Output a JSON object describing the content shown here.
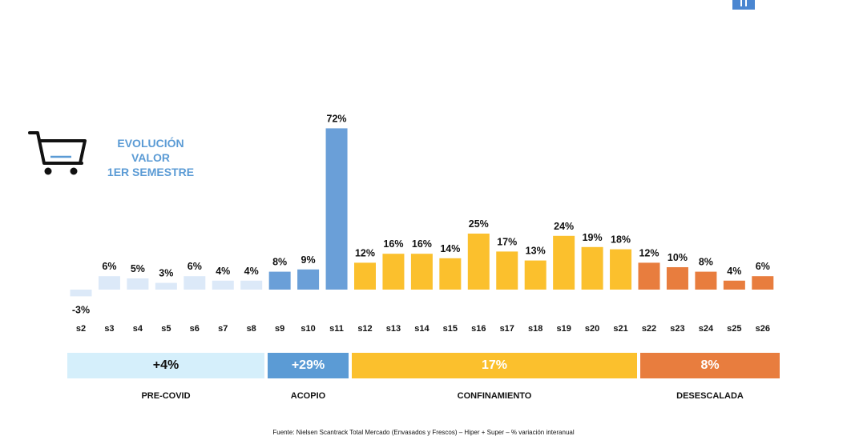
{
  "title_lines": [
    "EVOLUCIÓN",
    "VALOR",
    "1ER SEMESTRE"
  ],
  "chart_data": {
    "type": "bar",
    "title": "EVOLUCIÓN VALOR 1ER SEMESTRE",
    "categories": [
      "s2",
      "s3",
      "s4",
      "s5",
      "s6",
      "s7",
      "s8",
      "s9",
      "s10",
      "s11",
      "s12",
      "s13",
      "s14",
      "s15",
      "s16",
      "s17",
      "s18",
      "s19",
      "s20",
      "s21",
      "s22",
      "s23",
      "s24",
      "s25",
      "s26"
    ],
    "values": [
      -3,
      6,
      5,
      3,
      6,
      4,
      4,
      8,
      9,
      72,
      12,
      16,
      16,
      14,
      25,
      17,
      13,
      24,
      19,
      18,
      12,
      10,
      8,
      4,
      6
    ],
    "labels": [
      "-3%",
      "6%",
      "5%",
      "3%",
      "6%",
      "4%",
      "4%",
      "8%",
      "9%",
      "72%",
      "12%",
      "16%",
      "16%",
      "14%",
      "25%",
      "17%",
      "13%",
      "24%",
      "19%",
      "18%",
      "12%",
      "10%",
      "8%",
      "4%",
      "6%"
    ],
    "unit": "%",
    "phases": [
      {
        "name": "PRE-COVID",
        "value_label": "+4%",
        "color": "#d5effb",
        "text_color": "#111111",
        "weeks": [
          "s2",
          "s3",
          "s4",
          "s5",
          "s6",
          "s7",
          "s8"
        ]
      },
      {
        "name": "ACOPIO",
        "value_label": "+29%",
        "color": "#5b9bd5",
        "text_color": "#ffffff",
        "weeks": [
          "s9",
          "s10",
          "s11"
        ]
      },
      {
        "name": "CONFINAMIENTO",
        "value_label": "17%",
        "color": "#fbc02d",
        "text_color": "#ffffff",
        "weeks": [
          "s12",
          "s13",
          "s14",
          "s15",
          "s16",
          "s17",
          "s18",
          "s19",
          "s20",
          "s21"
        ]
      },
      {
        "name": "DESESCALADA",
        "value_label": "8%",
        "color": "#e87d3e",
        "text_color": "#ffffff",
        "weeks": [
          "s22",
          "s23",
          "s24",
          "s25",
          "s26"
        ]
      }
    ],
    "bar_colors": {
      "PRE-COVID": "#dce9f8",
      "ACOPIO": "#6a9fd8",
      "CONFINAMIENTO": "#fbc02d",
      "DESESCALADA": "#e87d3e"
    }
  },
  "source": "Fuente: Nielsen Scantrack Total Mercado (Envasados y Frescos) – Hiper + Super – % variación interanual",
  "icons": {
    "cart": "shopping-cart-icon",
    "logo": "brand-logo"
  }
}
